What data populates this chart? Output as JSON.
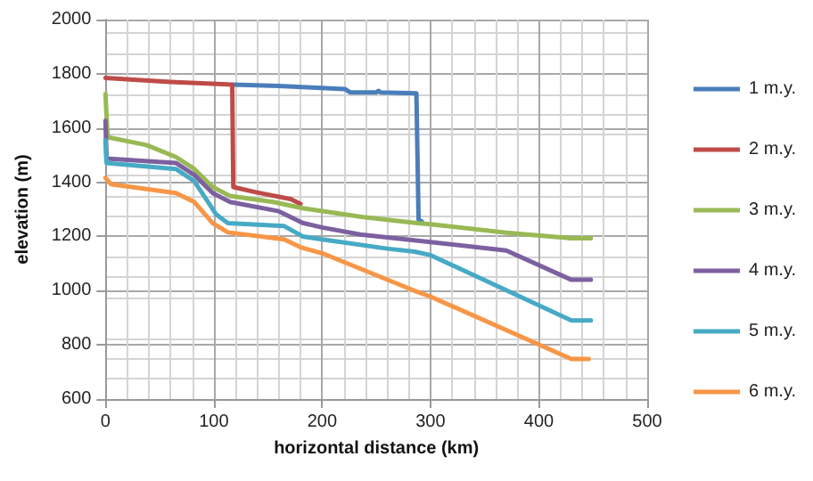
{
  "chart_data": {
    "type": "line",
    "xlabel": "horizontal distance (km)",
    "ylabel": "elevation (m)",
    "xlim": [
      0,
      500
    ],
    "xticks": [
      0,
      100,
      200,
      300,
      400,
      500
    ],
    "ylim": [
      600,
      2000
    ],
    "yticks": [
      600,
      800,
      1000,
      1200,
      1400,
      1600,
      1800,
      2000
    ],
    "grid": true,
    "legend": "right",
    "marker": "none",
    "line_style": "solid",
    "series": [
      {
        "name": "1 m.y.",
        "color": "#4a7ebb",
        "x": [
          118,
          160,
          221,
          226,
          250,
          252,
          254,
          287,
          289,
          292
        ],
        "values": [
          1760,
          1755,
          1744,
          1731,
          1731,
          1737,
          1731,
          1728,
          1262,
          1255
        ]
      },
      {
        "name": "2 m.y.",
        "color": "#be4b48",
        "x": [
          0,
          60,
          117,
          118,
          140,
          171,
          180
        ],
        "values": [
          1785,
          1770,
          1760,
          1382,
          1362,
          1338,
          1320
        ]
      },
      {
        "name": "3 m.y.",
        "color": "#98b954",
        "x": [
          0,
          2,
          38,
          65,
          82,
          99,
          115,
          155,
          182,
          238,
          288,
          300,
          370,
          430,
          448
        ],
        "values": [
          1726,
          1566,
          1537,
          1493,
          1449,
          1382,
          1349,
          1327,
          1304,
          1271,
          1249,
          1245,
          1214,
          1193,
          1193
        ]
      },
      {
        "name": "4 m.y.",
        "color": "#7d60a0",
        "x": [
          0,
          1,
          65,
          82,
          99,
          115,
          160,
          182,
          200,
          235,
          300,
          370,
          430,
          448
        ],
        "values": [
          1627,
          1487,
          1471,
          1427,
          1360,
          1327,
          1293,
          1250,
          1233,
          1207,
          1179,
          1148,
          1040,
          1040
        ]
      },
      {
        "name": "5 m.y.",
        "color": "#46aac5",
        "x": [
          0,
          1,
          65,
          82,
          102,
          113,
          165,
          182,
          200,
          260,
          285,
          300,
          430,
          448
        ],
        "values": [
          1555,
          1471,
          1449,
          1404,
          1282,
          1249,
          1238,
          1200,
          1189,
          1155,
          1144,
          1131,
          890,
          890
        ]
      },
      {
        "name": "6 m.y.",
        "color": "#f79646",
        "x": [
          0,
          5,
          65,
          82,
          99,
          113,
          165,
          180,
          200,
          285,
          300,
          430,
          446
        ],
        "values": [
          1416,
          1393,
          1360,
          1327,
          1249,
          1215,
          1189,
          1160,
          1138,
          1000,
          978,
          748,
          748
        ]
      }
    ]
  }
}
